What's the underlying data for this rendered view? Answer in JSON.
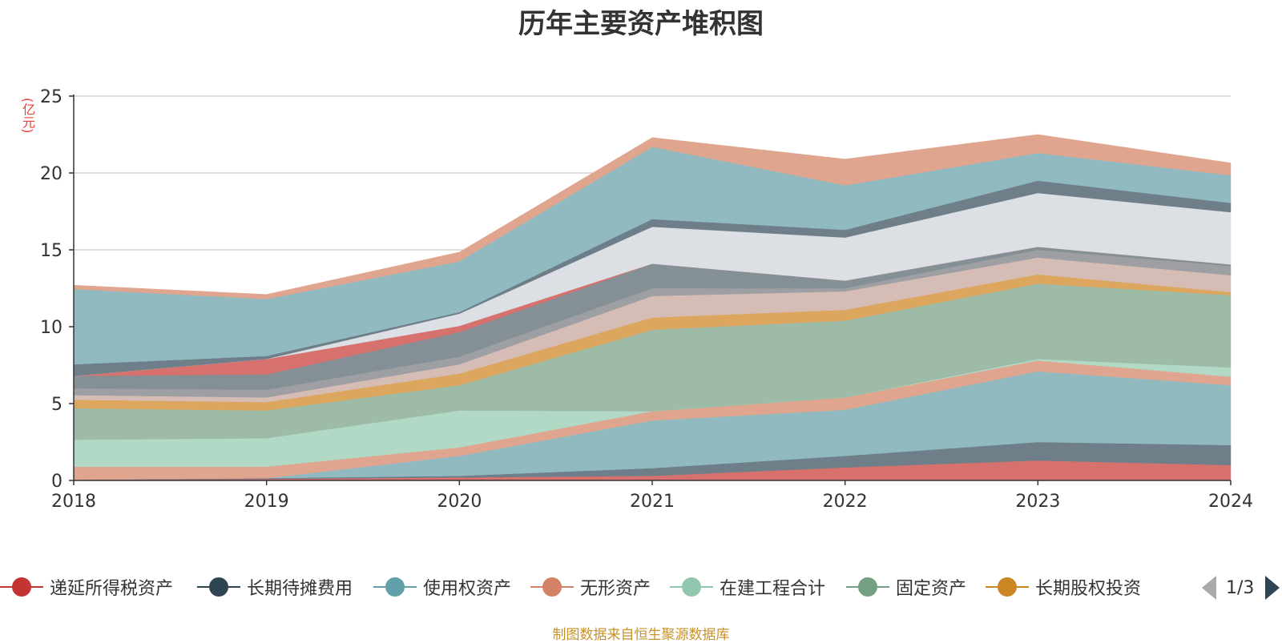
{
  "header": {
    "title": "历年主要资产堆积图"
  },
  "footer": {
    "source": "制图数据来自恒生聚源数据库"
  },
  "legend": {
    "items": [
      {
        "label": "递延所得税资产",
        "color": "#c23531"
      },
      {
        "label": "长期待摊费用",
        "color": "#2f4554"
      },
      {
        "label": "使用权资产",
        "color": "#61a0a8"
      },
      {
        "label": "无形资产",
        "color": "#d48265"
      },
      {
        "label": "在建工程合计",
        "color": "#91c7ae"
      },
      {
        "label": "固定资产",
        "color": "#749f83"
      },
      {
        "label": "长期股权投资",
        "color": "#ca8622"
      }
    ],
    "page": "1/3"
  },
  "chart_data": {
    "type": "area",
    "stacked": true,
    "unit": "(亿元)",
    "x": [
      "2018",
      "2019",
      "2020",
      "2021",
      "2022",
      "2023",
      "2024"
    ],
    "ylim": [
      0,
      25
    ],
    "yticks": [
      0,
      5,
      10,
      15,
      20,
      25
    ],
    "grid": true,
    "legend_position": "bottom",
    "series": [
      {
        "name": "递延所得税资产",
        "color": "#d7716e",
        "values": [
          0.05,
          0.1,
          0.2,
          0.3,
          0.85,
          1.3,
          1.0
        ]
      },
      {
        "name": "长期待摊费用",
        "color": "#6e7f8a",
        "values": [
          0.0,
          0.05,
          0.1,
          0.5,
          0.75,
          1.2,
          1.3
        ]
      },
      {
        "name": "使用权资产",
        "color": "#90babf",
        "values": [
          0.0,
          0.0,
          1.3,
          3.1,
          3.0,
          4.6,
          3.9
        ]
      },
      {
        "name": "无形资产",
        "color": "#e0a58f",
        "values": [
          0.85,
          0.75,
          0.55,
          0.6,
          0.8,
          0.7,
          0.55
        ]
      },
      {
        "name": "在建工程合计",
        "color": "#b1d9c6",
        "values": [
          1.75,
          1.85,
          2.4,
          0.0,
          0.0,
          0.1,
          0.6
        ]
      },
      {
        "name": "固定资产",
        "color": "#9dbba6",
        "values": [
          2.05,
          1.8,
          1.65,
          5.3,
          5.0,
          4.9,
          4.7
        ]
      },
      {
        "name": "长期股权投资",
        "color": "#dca65e",
        "values": [
          0.55,
          0.55,
          0.75,
          0.8,
          0.7,
          0.6,
          0.2
        ]
      },
      {
        "name": "",
        "color": "#d5bcb4",
        "values": [
          0.3,
          0.3,
          0.6,
          1.4,
          1.2,
          1.1,
          1.1
        ]
      },
      {
        "name": "",
        "color": "#9d9fa3",
        "values": [
          0.45,
          0.5,
          0.5,
          0.5,
          0.2,
          0.5,
          0.6
        ]
      },
      {
        "name": "",
        "color": "#858f96",
        "values": [
          0.8,
          1.0,
          1.6,
          1.6,
          0.5,
          0.2,
          0.1
        ]
      },
      {
        "name": "",
        "color": "#d7716e",
        "values": [
          0.0,
          1.0,
          0.4,
          0.0,
          0.0,
          0.0,
          0.0
        ]
      },
      {
        "name": "",
        "color": "#dcdfe3",
        "values": [
          0.0,
          0.0,
          0.8,
          2.4,
          2.8,
          3.5,
          3.4
        ]
      },
      {
        "name": "",
        "color": "#6e7f8a",
        "values": [
          0.75,
          0.2,
          0.1,
          0.5,
          0.5,
          0.8,
          0.6
        ]
      },
      {
        "name": "",
        "color": "#90babf",
        "values": [
          4.9,
          3.7,
          3.3,
          4.7,
          2.9,
          1.8,
          1.8
        ]
      },
      {
        "name": "",
        "color": "#e0a58f",
        "values": [
          0.25,
          0.3,
          0.6,
          0.6,
          1.7,
          1.2,
          0.8
        ]
      }
    ]
  }
}
